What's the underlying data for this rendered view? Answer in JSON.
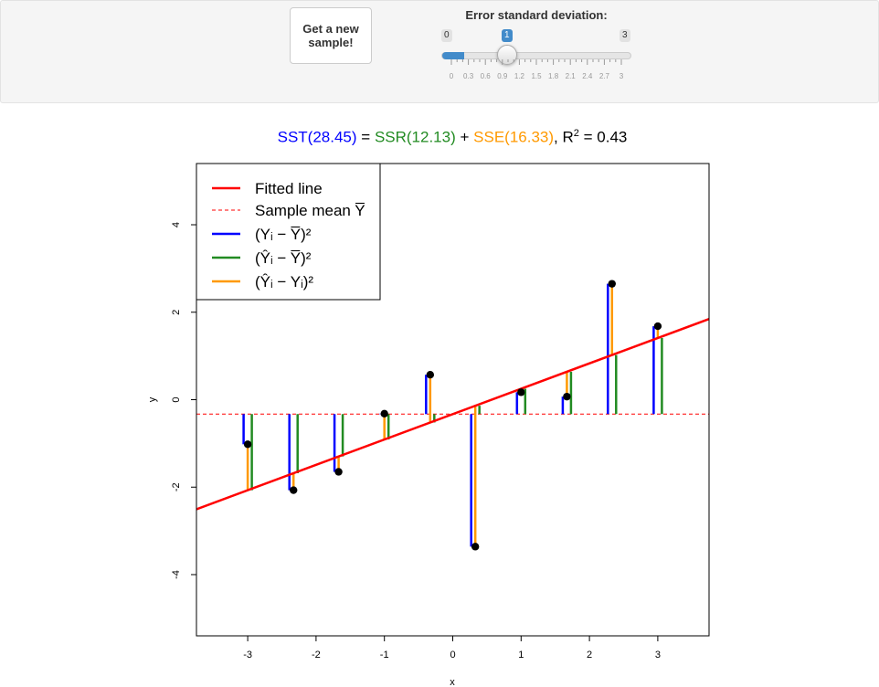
{
  "controls": {
    "new_sample_button": "Get a new sample!",
    "slider_label": "Error standard deviation:",
    "slider_min": "0",
    "slider_max": "3",
    "slider_value": "1",
    "slider_value_num": 1,
    "slider_tick_labels": [
      "0",
      "0.3",
      "0.6",
      "0.9",
      "1.2",
      "1.5",
      "1.8",
      "2.1",
      "2.4",
      "2.7",
      "3"
    ]
  },
  "title": {
    "sst": "SST(28.45)",
    "eq": " = ",
    "ssr": "SSR(12.13)",
    "plus": " + ",
    "sse": "SSE(16.33)",
    "r2_prefix": ", R",
    "r2_sup": "2",
    "r2_value": " = 0.43",
    "colors": {
      "sst": "#0000ff",
      "ssr": "#228b22",
      "sse": "#ff9900",
      "rest": "#000000"
    }
  },
  "chart_data": {
    "type": "scatter",
    "xlabel": "x",
    "ylabel": "y",
    "xlim": [
      -3.75,
      3.75
    ],
    "ylim": [
      -5.4,
      5.4
    ],
    "xticks": [
      -3,
      -2,
      -1,
      0,
      1,
      2,
      3
    ],
    "yticks": [
      -4,
      -2,
      0,
      2,
      4
    ],
    "points": [
      {
        "x": -3.0,
        "y": -1.02
      },
      {
        "x": -2.33,
        "y": -2.07
      },
      {
        "x": -1.67,
        "y": -1.65
      },
      {
        "x": -1.0,
        "y": -0.32
      },
      {
        "x": -0.33,
        "y": 0.57
      },
      {
        "x": 0.33,
        "y": -3.36
      },
      {
        "x": 1.0,
        "y": 0.17
      },
      {
        "x": 1.67,
        "y": 0.07
      },
      {
        "x": 2.33,
        "y": 2.65
      },
      {
        "x": 3.0,
        "y": 1.68
      }
    ],
    "mean_y": -0.33,
    "fitted_line": {
      "intercept": -0.33,
      "slope": 0.58
    },
    "legend": {
      "position": "top-left",
      "entries": [
        {
          "label": "Fitted line",
          "color": "#ff0000",
          "style": "solid"
        },
        {
          "label": "Sample mean Y̅",
          "color": "#ff0000",
          "style": "dashed"
        },
        {
          "label": "(Yᵢ − Y̅)²",
          "color": "#0000ff",
          "style": "solid"
        },
        {
          "label": "(Ŷᵢ − Y̅)²",
          "color": "#228b22",
          "style": "solid"
        },
        {
          "label": "(Ŷᵢ − Yᵢ)²",
          "color": "#ff9900",
          "style": "solid"
        }
      ]
    },
    "colors": {
      "sst": "#0000ff",
      "ssr": "#228b22",
      "sse": "#ff9900",
      "fit": "#ff0000",
      "mean": "#ff0000",
      "point": "#000000"
    }
  }
}
